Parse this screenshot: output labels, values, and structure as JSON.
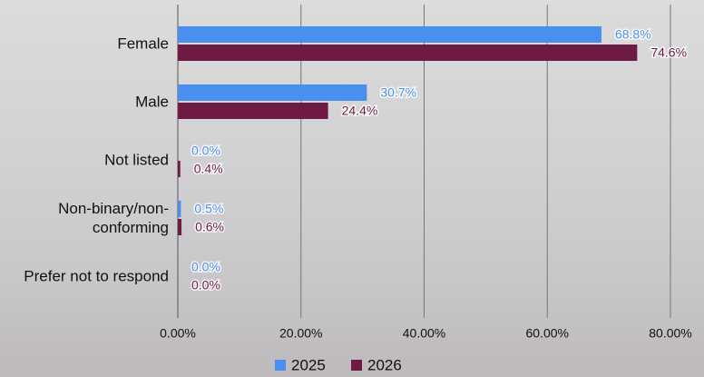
{
  "chart_data": {
    "type": "bar",
    "orientation": "horizontal",
    "categories": [
      "Female",
      "Male",
      "Not listed",
      "Non-binary/non-conforming",
      "Prefer not to respond"
    ],
    "series": [
      {
        "name": "2025",
        "color": "#4a8ff0",
        "values": [
          68.8,
          30.7,
          0.0,
          0.5,
          0.0
        ],
        "value_labels": [
          "68.8%",
          "30.7%",
          "0.0%",
          "0.5%",
          "0.0%"
        ]
      },
      {
        "name": "2026",
        "color": "#6e1a45",
        "values": [
          74.6,
          24.4,
          0.4,
          0.6,
          0.0
        ],
        "value_labels": [
          "74.6%",
          "24.4%",
          "0.4%",
          "0.6%",
          "0.0%"
        ]
      }
    ],
    "xlim": [
      0,
      80
    ],
    "xticks": [
      {
        "value": 0,
        "label": "0.00%"
      },
      {
        "value": 20,
        "label": "20.00%"
      },
      {
        "value": 40,
        "label": "40.00%"
      },
      {
        "value": 60,
        "label": "60.00%"
      },
      {
        "value": 80,
        "label": "80.00%"
      }
    ],
    "grid": true,
    "legend": "bottom"
  }
}
